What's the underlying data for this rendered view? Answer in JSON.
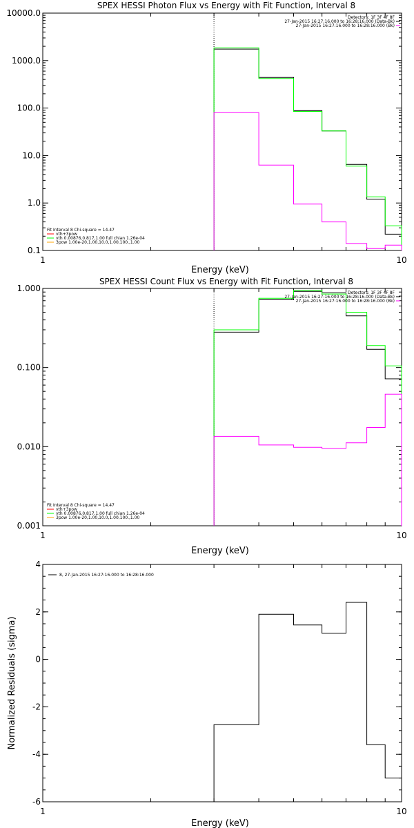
{
  "chart_data": [
    {
      "type": "line",
      "title": "SPEX HESSI Photon Flux vs Energy with Fit Function, Interval 8",
      "xlabel": "Energy (keV)",
      "ylabel": "",
      "xscale": "log",
      "yscale": "log",
      "xlim": [
        1,
        10
      ],
      "ylim": [
        0.1,
        10000
      ],
      "xticks": [
        "1",
        "10"
      ],
      "yticks": [
        "0.1",
        "1.0",
        "10.0",
        "100.0",
        "1000.0",
        "10000.0"
      ],
      "vline_x": 3,
      "edges": [
        3,
        4,
        5,
        6,
        7,
        8,
        9,
        10
      ],
      "legend_tr": [
        {
          "text": "Detectors: 1F 3F 4F 8F",
          "color": ""
        },
        {
          "text": "27-Jan-2015 16:27:16.000 to 16:28:16.000 (Data-Bk)",
          "color": "#000000"
        },
        {
          "text": "27-Jan-2015 16:27:16.000 to 16:28:16.000 (Bk)",
          "color": "#ff00ff"
        }
      ],
      "legend_bl": [
        {
          "text": "Fit Interval  8    Chi-square = 14.47",
          "color": ""
        },
        {
          "text": "vth+3pow",
          "color": "#ff0000"
        },
        {
          "text": "vth  0.00876,0.817,1.00   full chian 1.26e-04",
          "color": "#00ff00"
        },
        {
          "text": "3pow  1.00e-20,1.00,10.0,1.00,100.,1.00",
          "color": "#ffa500"
        }
      ],
      "series": [
        {
          "name": "Data-Bk",
          "color": "#000000",
          "values": [
            1750,
            440,
            88,
            33,
            6.5,
            1.2,
            0.22
          ]
        },
        {
          "name": "vth",
          "color": "#00ff00",
          "values": [
            1850,
            420,
            85,
            33,
            6.0,
            1.35,
            0.33
          ]
        },
        {
          "name": "Bk",
          "color": "#ff00ff",
          "values": [
            80,
            6.3,
            0.95,
            0.4,
            0.14,
            0.11,
            0.13
          ]
        }
      ]
    },
    {
      "type": "line",
      "title": "SPEX HESSI Count Flux vs Energy with Fit Function, Interval 8",
      "xlabel": "Energy (keV)",
      "ylabel": "",
      "xscale": "log",
      "yscale": "log",
      "xlim": [
        1,
        10
      ],
      "ylim": [
        0.001,
        1
      ],
      "xticks": [
        "1",
        "10"
      ],
      "yticks": [
        "0.001",
        "0.010",
        "0.100",
        "1.000"
      ],
      "vline_x": 3,
      "edges": [
        3,
        4,
        5,
        6,
        7,
        8,
        9,
        10
      ],
      "legend_tr": [
        {
          "text": "Detectors: 1F 3F 4F 8F",
          "color": ""
        },
        {
          "text": "27-Jan-2015 16:27:16.000 to 16:28:16.000 (Data-Bk)",
          "color": "#000000"
        },
        {
          "text": "27-Jan-2015 16:27:16.000 to 16:28:16.000 (Bk)",
          "color": "#ff00ff"
        }
      ],
      "legend_bl": [
        {
          "text": "Fit Interval  8    Chi-square = 14.47",
          "color": ""
        },
        {
          "text": "vth+3pow",
          "color": "#ff0000"
        },
        {
          "text": "vth  0.00876,0.817,1.00   full chian 1.26e-04",
          "color": "#00ff00"
        },
        {
          "text": "3pow  1.00e-20,1.00,10.0,1.00,100.,1.00",
          "color": "#ffa500"
        }
      ],
      "series": [
        {
          "name": "Data-Bk",
          "color": "#000000",
          "values": [
            0.28,
            0.72,
            0.92,
            0.88,
            0.45,
            0.17,
            0.072
          ]
        },
        {
          "name": "vth",
          "color": "#00ff00",
          "values": [
            0.3,
            0.75,
            0.95,
            0.85,
            0.5,
            0.19,
            0.105
          ]
        },
        {
          "name": "Bk",
          "color": "#ff00ff",
          "values": [
            0.0135,
            0.0105,
            0.0098,
            0.0095,
            0.0112,
            0.0175,
            0.046
          ]
        }
      ]
    },
    {
      "type": "line",
      "title": "",
      "xlabel": "Energy (keV)",
      "ylabel": "Normalized Residuals (sigma)",
      "xscale": "log",
      "yscale": "linear",
      "xlim": [
        1,
        10
      ],
      "ylim": [
        -6,
        4
      ],
      "xticks": [
        "1",
        "10"
      ],
      "yticks": [
        "-6",
        "-4",
        "-2",
        "0",
        "2",
        "4"
      ],
      "edges": [
        3,
        4,
        5,
        6,
        7,
        8,
        9,
        10
      ],
      "legend_tl": [
        {
          "text": "8, 27-Jan-2015 16:27:16.000 to 16:28:16.000",
          "color": "#000000"
        }
      ],
      "series": [
        {
          "name": "8, 27-Jan-2015 16:27:16.000 to 16:28:16.000",
          "color": "#000000",
          "values": [
            -2.75,
            1.9,
            1.45,
            1.1,
            2.4,
            -3.6,
            -5.0
          ]
        }
      ]
    }
  ]
}
